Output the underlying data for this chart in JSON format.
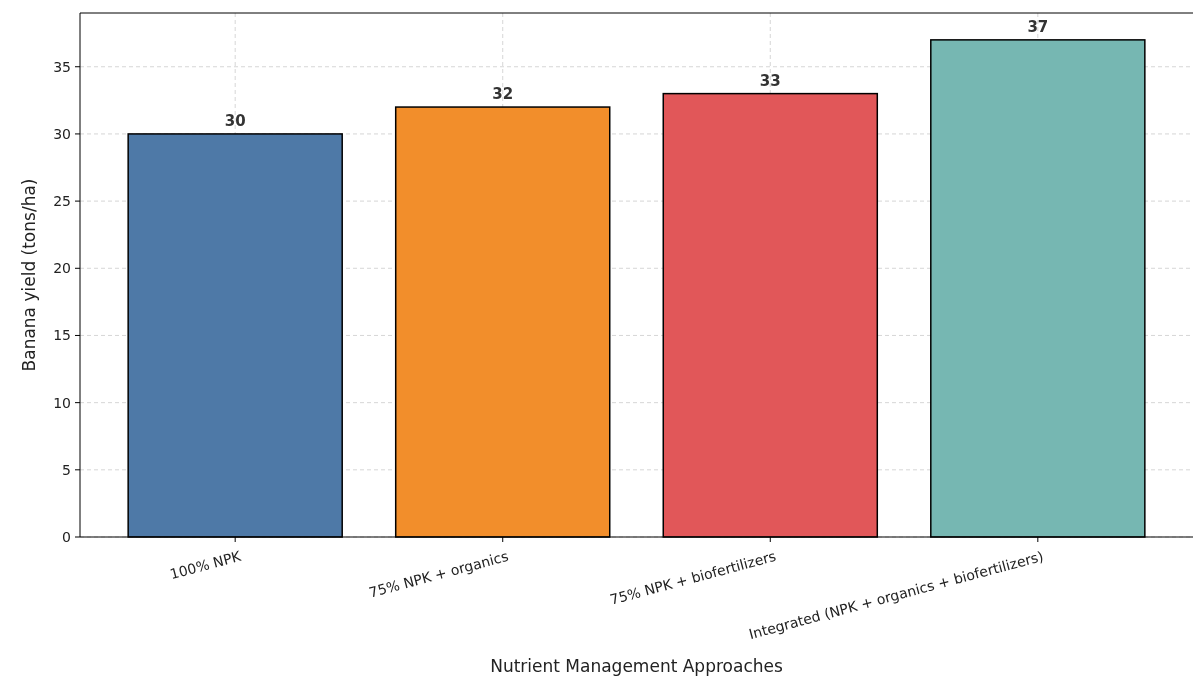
{
  "chart_data": {
    "type": "bar",
    "xlabel": "Nutrient Management Approaches",
    "ylabel": "Banana yield (tons/ha)",
    "categories": [
      "100% NPK",
      "75% NPK + organics",
      "75% NPK + biofertilizers",
      "Integrated (NPK + organics + biofertilizers)"
    ],
    "values": [
      30,
      32,
      33,
      37
    ],
    "colors": [
      "#4e79a7",
      "#f28e2b",
      "#e15759",
      "#76b7b2"
    ],
    "ylim": [
      0,
      39
    ],
    "yticks": [
      0,
      5,
      10,
      15,
      20,
      25,
      30,
      35
    ],
    "grid": true,
    "data_labels": true,
    "line_style": "dashed"
  }
}
